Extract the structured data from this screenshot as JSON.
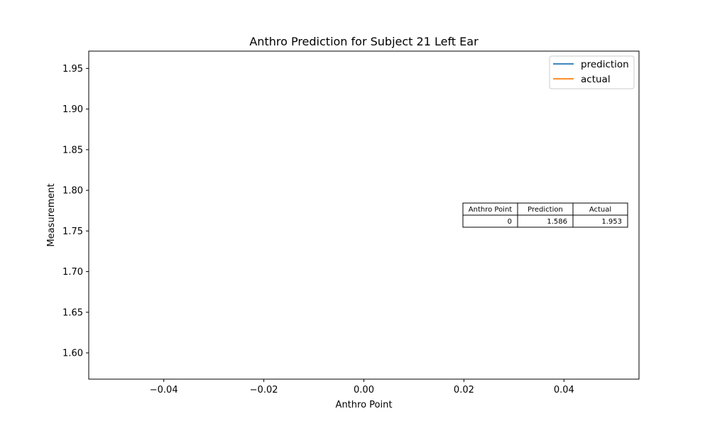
{
  "chart_data": {
    "type": "line",
    "title": "Anthro Prediction for Subject 21 Left Ear",
    "xlabel": "Anthro Point",
    "ylabel": "Measurement",
    "xlim": [
      -0.055,
      0.055
    ],
    "ylim": [
      1.5677,
      1.9713
    ],
    "xticks": [
      -0.04,
      -0.02,
      0.0,
      0.02,
      0.04
    ],
    "xtick_labels": [
      "−0.04",
      "−0.02",
      "0.00",
      "0.02",
      "0.04"
    ],
    "yticks": [
      1.6,
      1.65,
      1.7,
      1.75,
      1.8,
      1.85,
      1.9,
      1.95
    ],
    "ytick_labels": [
      "1.60",
      "1.65",
      "1.70",
      "1.75",
      "1.80",
      "1.85",
      "1.90",
      "1.95"
    ],
    "grid": false,
    "legend_position": "top-right",
    "series": [
      {
        "name": "prediction",
        "color": "#1f77b4",
        "x": [
          0
        ],
        "y": [
          1.586
        ]
      },
      {
        "name": "actual",
        "color": "#ff7f0e",
        "x": [
          0
        ],
        "y": [
          1.953
        ]
      }
    ],
    "table": {
      "position": "right",
      "headers": [
        "Anthro Point",
        "Prediction",
        "Actual"
      ],
      "rows": [
        [
          "0",
          "1.586",
          "1.953"
        ]
      ]
    }
  }
}
